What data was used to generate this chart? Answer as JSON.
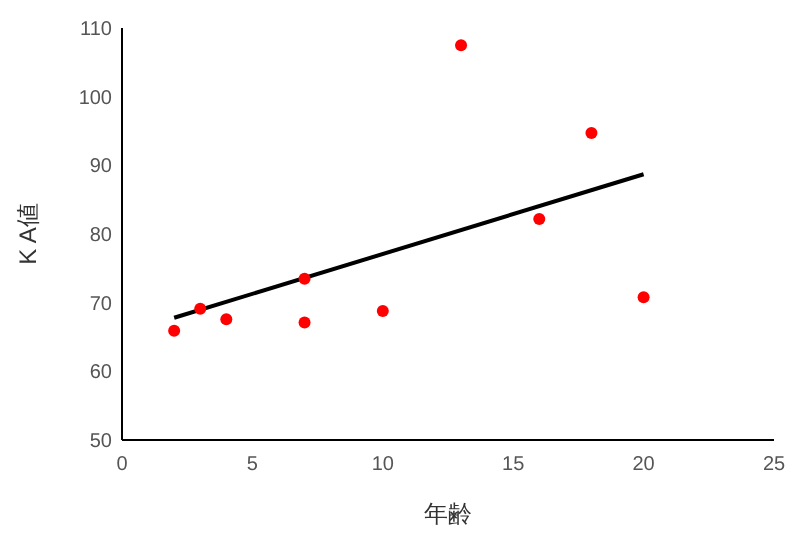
{
  "chart_data": {
    "type": "scatter",
    "xlabel": "年齢",
    "ylabel": "K A値",
    "xlim": [
      0,
      25
    ],
    "xticks": [
      0,
      5,
      10,
      15,
      20,
      25
    ],
    "ylim": [
      50,
      110
    ],
    "yticks": [
      50,
      60,
      70,
      80,
      90,
      100,
      110
    ],
    "grid": false,
    "series": [
      {
        "color": "#ff0000",
        "marker": "circle",
        "x": [
          2,
          3,
          4,
          7,
          7,
          10,
          13,
          16,
          18,
          20
        ],
        "values": [
          65.9,
          69.1,
          67.6,
          73.5,
          67.1,
          68.8,
          107.5,
          82.2,
          94.7,
          70.8
        ]
      },
      {
        "type": "line",
        "color": "#000000",
        "x": [
          2,
          20
        ],
        "values": [
          67.8,
          88.7
        ]
      }
    ]
  }
}
